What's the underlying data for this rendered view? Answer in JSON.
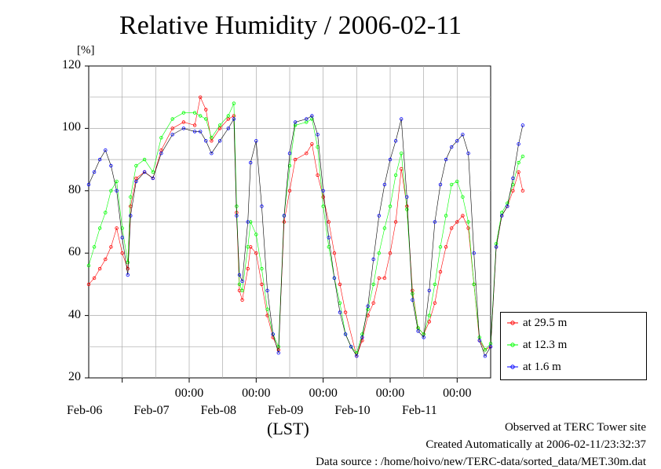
{
  "chart_data": {
    "type": "line",
    "title": "Relative Humidity / 2006-02-11",
    "ylabel": "[%]",
    "xlabel": "(LST)",
    "ylim": [
      20,
      120
    ],
    "yticks": [
      20,
      40,
      60,
      80,
      100,
      120
    ],
    "xlim_days": [
      "2006-02-05 12:00",
      "2006-02-11 12:00"
    ],
    "x_time_labels": [
      "00:00",
      "00:00",
      "00:00",
      "00:00",
      "00:00"
    ],
    "x_date_labels": [
      "Feb-06",
      "Feb-07",
      "Feb-08",
      "Feb-09",
      "Feb-10",
      "Feb-11"
    ],
    "grid": true,
    "legend_position": "right",
    "series": [
      {
        "name": "at 29.5 m",
        "color": "#ff0000",
        "points": [
          [
            "2006-02-05 12:00",
            50
          ],
          [
            "2006-02-05 14:00",
            52
          ],
          [
            "2006-02-05 16:00",
            55
          ],
          [
            "2006-02-05 18:00",
            58
          ],
          [
            "2006-02-05 20:00",
            62
          ],
          [
            "2006-02-05 22:00",
            68
          ],
          [
            "2006-02-06 00:00",
            60
          ],
          [
            "2006-02-06 02:00",
            55
          ],
          [
            "2006-02-06 03:00",
            75
          ],
          [
            "2006-02-06 05:00",
            84
          ],
          [
            "2006-02-06 08:00",
            86
          ],
          [
            "2006-02-06 11:00",
            84
          ],
          [
            "2006-02-06 14:00",
            93
          ],
          [
            "2006-02-06 18:00",
            100
          ],
          [
            "2006-02-06 22:00",
            102
          ],
          [
            "2006-02-07 02:00",
            101
          ],
          [
            "2006-02-07 04:00",
            110
          ],
          [
            "2006-02-07 06:00",
            106
          ],
          [
            "2006-02-07 08:00",
            96
          ],
          [
            "2006-02-07 11:00",
            100
          ],
          [
            "2006-02-07 14:00",
            103
          ],
          [
            "2006-02-07 16:00",
            104
          ],
          [
            "2006-02-07 17:00",
            73
          ],
          [
            "2006-02-07 18:00",
            48
          ],
          [
            "2006-02-07 19:00",
            45
          ],
          [
            "2006-02-07 21:00",
            55
          ],
          [
            "2006-02-07 22:00",
            62
          ],
          [
            "2006-02-08 00:00",
            60
          ],
          [
            "2006-02-08 02:00",
            50
          ],
          [
            "2006-02-08 04:00",
            40
          ],
          [
            "2006-02-08 06:00",
            33
          ],
          [
            "2006-02-08 08:00",
            29
          ],
          [
            "2006-02-08 10:00",
            70
          ],
          [
            "2006-02-08 12:00",
            80
          ],
          [
            "2006-02-08 14:00",
            90
          ],
          [
            "2006-02-08 18:00",
            92
          ],
          [
            "2006-02-08 20:00",
            95
          ],
          [
            "2006-02-08 22:00",
            85
          ],
          [
            "2006-02-09 00:00",
            78
          ],
          [
            "2006-02-09 02:00",
            70
          ],
          [
            "2006-02-09 04:00",
            60
          ],
          [
            "2006-02-09 06:00",
            50
          ],
          [
            "2006-02-09 08:00",
            41
          ],
          [
            "2006-02-09 12:00",
            27
          ],
          [
            "2006-02-09 14:00",
            32
          ],
          [
            "2006-02-09 16:00",
            40
          ],
          [
            "2006-02-09 18:00",
            44
          ],
          [
            "2006-02-09 20:00",
            52
          ],
          [
            "2006-02-09 22:00",
            52
          ],
          [
            "2006-02-10 00:00",
            60
          ],
          [
            "2006-02-10 02:00",
            70
          ],
          [
            "2006-02-10 04:00",
            87
          ],
          [
            "2006-02-10 06:00",
            75
          ],
          [
            "2006-02-10 08:00",
            48
          ],
          [
            "2006-02-10 10:00",
            36
          ],
          [
            "2006-02-10 12:00",
            34
          ],
          [
            "2006-02-10 14:00",
            38
          ],
          [
            "2006-02-10 16:00",
            44
          ],
          [
            "2006-02-10 18:00",
            54
          ],
          [
            "2006-02-10 20:00",
            62
          ],
          [
            "2006-02-10 22:00",
            68
          ],
          [
            "2006-02-11 00:00",
            70
          ],
          [
            "2006-02-11 02:00",
            72
          ],
          [
            "2006-02-11 04:00",
            68
          ],
          [
            "2006-02-11 06:00",
            50
          ],
          [
            "2006-02-11 08:00",
            32
          ],
          [
            "2006-02-11 10:00",
            29
          ],
          [
            "2006-02-11 12:00",
            30
          ],
          [
            "2006-02-11 14:00",
            62
          ],
          [
            "2006-02-11 16:00",
            72
          ],
          [
            "2006-02-11 18:00",
            75
          ],
          [
            "2006-02-11 20:00",
            80
          ],
          [
            "2006-02-11 22:00",
            86
          ],
          [
            "2006-02-11 23:30",
            80
          ]
        ]
      },
      {
        "name": "at 12.3 m",
        "color": "#00ff00",
        "points": [
          [
            "2006-02-05 12:00",
            56
          ],
          [
            "2006-02-05 14:00",
            62
          ],
          [
            "2006-02-05 16:00",
            68
          ],
          [
            "2006-02-05 18:00",
            73
          ],
          [
            "2006-02-05 20:00",
            80
          ],
          [
            "2006-02-05 22:00",
            83
          ],
          [
            "2006-02-06 00:00",
            68
          ],
          [
            "2006-02-06 02:00",
            57
          ],
          [
            "2006-02-06 03:00",
            78
          ],
          [
            "2006-02-06 05:00",
            88
          ],
          [
            "2006-02-06 08:00",
            90
          ],
          [
            "2006-02-06 11:00",
            86
          ],
          [
            "2006-02-06 14:00",
            97
          ],
          [
            "2006-02-06 18:00",
            103
          ],
          [
            "2006-02-06 22:00",
            105
          ],
          [
            "2006-02-07 02:00",
            105
          ],
          [
            "2006-02-07 04:00",
            104
          ],
          [
            "2006-02-07 06:00",
            103
          ],
          [
            "2006-02-07 08:00",
            97
          ],
          [
            "2006-02-07 11:00",
            101
          ],
          [
            "2006-02-07 14:00",
            104
          ],
          [
            "2006-02-07 16:00",
            108
          ],
          [
            "2006-02-07 17:00",
            75
          ],
          [
            "2006-02-07 18:00",
            50
          ],
          [
            "2006-02-07 19:00",
            48
          ],
          [
            "2006-02-07 21:00",
            62
          ],
          [
            "2006-02-07 22:00",
            70
          ],
          [
            "2006-02-08 00:00",
            66
          ],
          [
            "2006-02-08 02:00",
            55
          ],
          [
            "2006-02-08 04:00",
            42
          ],
          [
            "2006-02-08 06:00",
            34
          ],
          [
            "2006-02-08 08:00",
            30
          ],
          [
            "2006-02-08 10:00",
            72
          ],
          [
            "2006-02-08 12:00",
            88
          ],
          [
            "2006-02-08 14:00",
            101
          ],
          [
            "2006-02-08 18:00",
            102
          ],
          [
            "2006-02-08 20:00",
            103
          ],
          [
            "2006-02-08 22:00",
            94
          ],
          [
            "2006-02-09 00:00",
            75
          ],
          [
            "2006-02-09 02:00",
            62
          ],
          [
            "2006-02-09 04:00",
            52
          ],
          [
            "2006-02-09 06:00",
            44
          ],
          [
            "2006-02-09 08:00",
            34
          ],
          [
            "2006-02-09 10:00",
            30
          ],
          [
            "2006-02-09 12:00",
            28
          ],
          [
            "2006-02-09 14:00",
            34
          ],
          [
            "2006-02-09 16:00",
            42
          ],
          [
            "2006-02-09 18:00",
            50
          ],
          [
            "2006-02-09 20:00",
            60
          ],
          [
            "2006-02-09 22:00",
            68
          ],
          [
            "2006-02-10 00:00",
            75
          ],
          [
            "2006-02-10 02:00",
            85
          ],
          [
            "2006-02-10 04:00",
            92
          ],
          [
            "2006-02-10 06:00",
            74
          ],
          [
            "2006-02-10 08:00",
            47
          ],
          [
            "2006-02-10 10:00",
            36
          ],
          [
            "2006-02-10 12:00",
            34
          ],
          [
            "2006-02-10 14:00",
            40
          ],
          [
            "2006-02-10 16:00",
            50
          ],
          [
            "2006-02-10 18:00",
            62
          ],
          [
            "2006-02-10 20:00",
            72
          ],
          [
            "2006-02-10 22:00",
            82
          ],
          [
            "2006-02-11 00:00",
            83
          ],
          [
            "2006-02-11 02:00",
            78
          ],
          [
            "2006-02-11 04:00",
            70
          ],
          [
            "2006-02-11 06:00",
            50
          ],
          [
            "2006-02-11 08:00",
            33
          ],
          [
            "2006-02-11 10:00",
            29
          ],
          [
            "2006-02-11 12:00",
            31
          ],
          [
            "2006-02-11 14:00",
            63
          ],
          [
            "2006-02-11 16:00",
            73
          ],
          [
            "2006-02-11 18:00",
            76
          ],
          [
            "2006-02-11 20:00",
            82
          ],
          [
            "2006-02-11 22:00",
            89
          ],
          [
            "2006-02-11 23:30",
            91
          ]
        ]
      },
      {
        "name": "at 1.6 m",
        "color": "#0000ff",
        "points": [
          [
            "2006-02-05 12:00",
            82
          ],
          [
            "2006-02-05 14:00",
            86
          ],
          [
            "2006-02-05 16:00",
            90
          ],
          [
            "2006-02-05 18:00",
            93
          ],
          [
            "2006-02-05 20:00",
            88
          ],
          [
            "2006-02-05 22:00",
            80
          ],
          [
            "2006-02-06 00:00",
            65
          ],
          [
            "2006-02-06 02:00",
            53
          ],
          [
            "2006-02-06 03:00",
            72
          ],
          [
            "2006-02-06 05:00",
            83
          ],
          [
            "2006-02-06 08:00",
            86
          ],
          [
            "2006-02-06 11:00",
            84
          ],
          [
            "2006-02-06 14:00",
            92
          ],
          [
            "2006-02-06 18:00",
            98
          ],
          [
            "2006-02-06 22:00",
            100
          ],
          [
            "2006-02-07 02:00",
            99
          ],
          [
            "2006-02-07 04:00",
            99
          ],
          [
            "2006-02-07 06:00",
            96
          ],
          [
            "2006-02-07 08:00",
            92
          ],
          [
            "2006-02-07 11:00",
            96
          ],
          [
            "2006-02-07 14:00",
            100
          ],
          [
            "2006-02-07 16:00",
            103
          ],
          [
            "2006-02-07 17:00",
            72
          ],
          [
            "2006-02-07 18:00",
            53
          ],
          [
            "2006-02-07 19:00",
            51
          ],
          [
            "2006-02-07 21:00",
            70
          ],
          [
            "2006-02-07 22:00",
            89
          ],
          [
            "2006-02-08 00:00",
            96
          ],
          [
            "2006-02-08 02:00",
            75
          ],
          [
            "2006-02-08 04:00",
            48
          ],
          [
            "2006-02-08 06:00",
            34
          ],
          [
            "2006-02-08 08:00",
            28
          ],
          [
            "2006-02-08 10:00",
            72
          ],
          [
            "2006-02-08 12:00",
            92
          ],
          [
            "2006-02-08 14:00",
            102
          ],
          [
            "2006-02-08 18:00",
            103
          ],
          [
            "2006-02-08 20:00",
            104
          ],
          [
            "2006-02-08 22:00",
            98
          ],
          [
            "2006-02-09 00:00",
            80
          ],
          [
            "2006-02-09 02:00",
            65
          ],
          [
            "2006-02-09 04:00",
            52
          ],
          [
            "2006-02-09 06:00",
            41
          ],
          [
            "2006-02-09 08:00",
            34
          ],
          [
            "2006-02-09 10:00",
            30
          ],
          [
            "2006-02-09 12:00",
            27
          ],
          [
            "2006-02-09 14:00",
            33
          ],
          [
            "2006-02-09 16:00",
            43
          ],
          [
            "2006-02-09 18:00",
            58
          ],
          [
            "2006-02-09 20:00",
            72
          ],
          [
            "2006-02-09 22:00",
            82
          ],
          [
            "2006-02-10 00:00",
            90
          ],
          [
            "2006-02-10 02:00",
            96
          ],
          [
            "2006-02-10 04:00",
            103
          ],
          [
            "2006-02-10 06:00",
            78
          ],
          [
            "2006-02-10 08:00",
            45
          ],
          [
            "2006-02-10 10:00",
            35
          ],
          [
            "2006-02-10 12:00",
            33
          ],
          [
            "2006-02-10 14:00",
            48
          ],
          [
            "2006-02-10 16:00",
            70
          ],
          [
            "2006-02-10 18:00",
            82
          ],
          [
            "2006-02-10 20:00",
            90
          ],
          [
            "2006-02-10 22:00",
            94
          ],
          [
            "2006-02-11 00:00",
            96
          ],
          [
            "2006-02-11 02:00",
            98
          ],
          [
            "2006-02-11 04:00",
            92
          ],
          [
            "2006-02-11 06:00",
            60
          ],
          [
            "2006-02-11 08:00",
            32
          ],
          [
            "2006-02-11 10:00",
            27
          ],
          [
            "2006-02-11 12:00",
            30
          ],
          [
            "2006-02-11 14:00",
            62
          ],
          [
            "2006-02-11 16:00",
            72
          ],
          [
            "2006-02-11 18:00",
            75
          ],
          [
            "2006-02-11 20:00",
            84
          ],
          [
            "2006-02-11 22:00",
            95
          ],
          [
            "2006-02-11 23:30",
            101
          ]
        ]
      }
    ]
  },
  "footer": {
    "line1": "Observed at TERC Tower site",
    "line2": "Created Automatically at 2006-02-11/23:32:37",
    "line3": "Data source : /home/hoivo/new/TERC-data/sorted_data/MET.30m.dat"
  }
}
